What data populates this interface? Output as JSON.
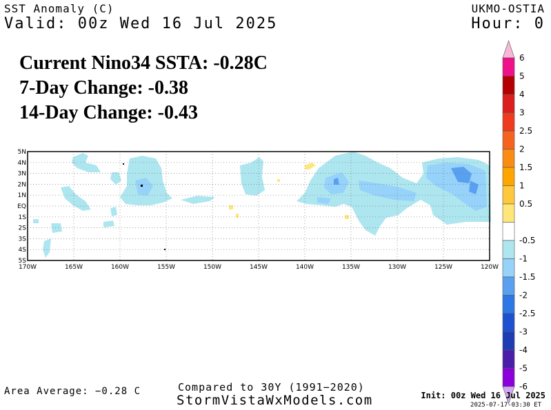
{
  "header": {
    "variable": "SST Anomaly (C)",
    "valid": "Valid: 00z Wed 16 Jul 2025",
    "source": "UKMO-OSTIA",
    "hour": "Hour: 0"
  },
  "stats": {
    "current": "Current Nino34 SSTA: -0.28C",
    "change7": "7-Day Change: -0.38",
    "change14": "14-Day Change: -0.43"
  },
  "map": {
    "lat_labels": [
      "5N",
      "4N",
      "3N",
      "2N",
      "1N",
      "EQ",
      "1S",
      "2S",
      "3S",
      "4S",
      "5S"
    ],
    "lon_labels": [
      "170W",
      "165W",
      "160W",
      "155W",
      "150W",
      "145W",
      "140W",
      "135W",
      "130W",
      "125W",
      "120W"
    ],
    "lat_range": [
      -5,
      5
    ],
    "lon_range": [
      -170,
      -120
    ],
    "grid": "dotted"
  },
  "colorbar": {
    "labels": [
      "6",
      "5",
      "4",
      "3",
      "2.5",
      "2",
      "1.5",
      "1",
      "0.5",
      "-0.5",
      "-1",
      "-1.5",
      "-2",
      "-2.5",
      "-3",
      "-4",
      "-5",
      "-6"
    ],
    "colors": [
      "#f9b7d6",
      "#f0118a",
      "#b40000",
      "#dc1e1e",
      "#f03c1e",
      "#f5641e",
      "#fa8c14",
      "#ffa500",
      "#ffc83c",
      "#ffe678",
      "#ffffff",
      "#aee6f0",
      "#96d2fa",
      "#5aa0f0",
      "#2d78e6",
      "#1e50d2",
      "#1e3cb4",
      "#4b1eaa",
      "#8c00dc",
      "#d2aaf0"
    ]
  },
  "footer": {
    "area_average": "Area Average: −0.28 C",
    "compared": "Compared to 30Y (1991−2020)",
    "site": "StormVistaWxModels.com",
    "init": "Init: 00z Wed 16 Jul 2025",
    "stamp": "2025-07-17-03:30 ET"
  }
}
